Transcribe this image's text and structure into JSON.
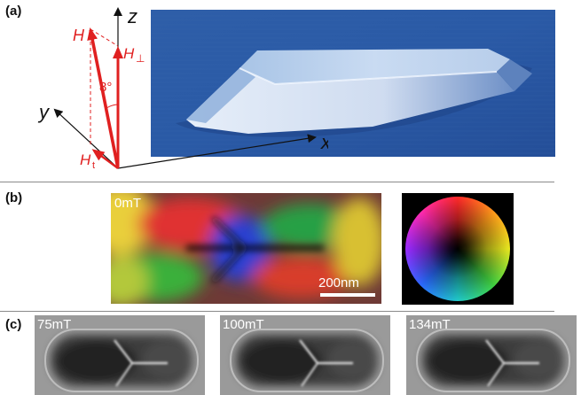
{
  "panel_a": {
    "label": "(a)",
    "axes": {
      "z": "z",
      "y": "y",
      "x": "x"
    },
    "field": {
      "main": "H",
      "perp": "H",
      "perp_sub": "⊥",
      "trans": "H",
      "trans_sub": "t"
    },
    "angle": "8°",
    "colors": {
      "vector": "#e02020",
      "axis": "#111111"
    }
  },
  "panel_b": {
    "label": "(b)",
    "field_value": "0mT",
    "scale_bar": "200nm"
  },
  "panel_c": {
    "label": "(c)",
    "images": [
      {
        "field_value": "75mT"
      },
      {
        "field_value": "100mT"
      },
      {
        "field_value": "134mT"
      }
    ]
  }
}
